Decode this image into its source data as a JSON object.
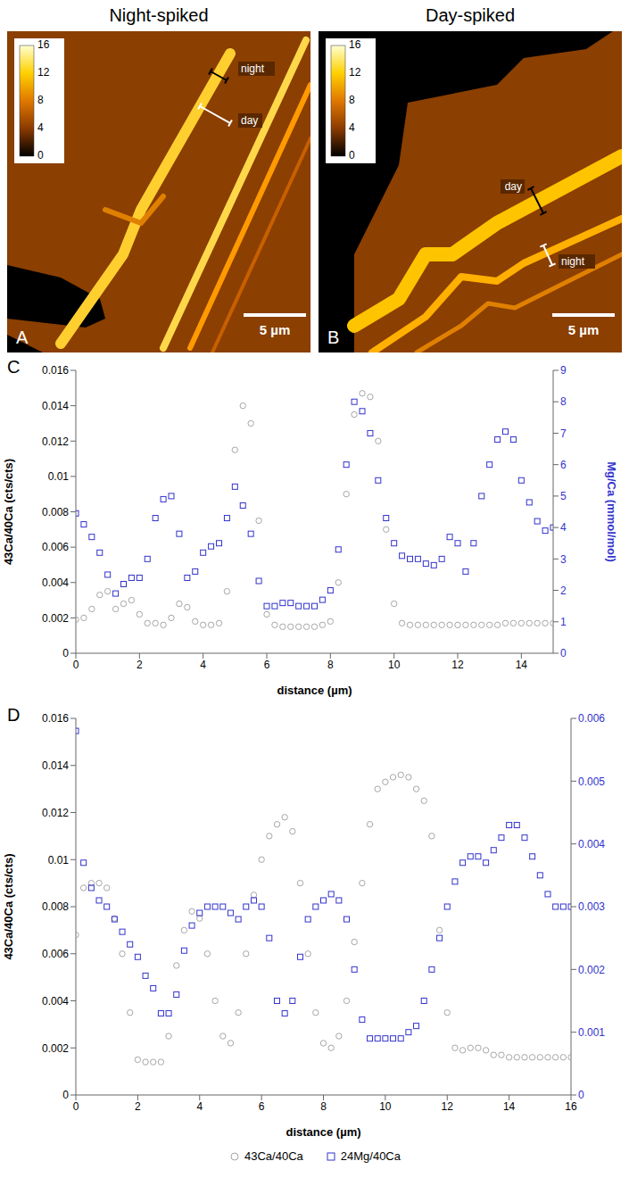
{
  "images": [
    {
      "panel": "A",
      "title": "Night-spiked",
      "colorbar": {
        "range": [
          0,
          16
        ],
        "ticks": [
          0,
          4,
          8,
          12,
          16
        ]
      },
      "annotations": [
        "night",
        "day"
      ],
      "scale_bar": "5 µm"
    },
    {
      "panel": "B",
      "title": "Day-spiked",
      "colorbar": {
        "range": [
          0,
          16
        ],
        "ticks": [
          0,
          4,
          8,
          12,
          16
        ]
      },
      "annotations": [
        "day",
        "night"
      ],
      "scale_bar": "5 µm"
    }
  ],
  "chart_data": [
    {
      "type": "scatter",
      "panel": "C",
      "x_label": "distance (µm)",
      "y_label": "43Ca/40Ca (cts/cts)",
      "y2_label": "Mg/Ca (mmol/mol)",
      "xlim": [
        0,
        15
      ],
      "xticks": [
        0,
        2,
        4,
        6,
        8,
        10,
        12,
        14
      ],
      "ylim": [
        0,
        0.016
      ],
      "yticks": [
        0,
        0.002,
        0.004,
        0.006,
        0.008,
        0.01,
        0.012,
        0.014,
        0.016
      ],
      "y2lim": [
        0,
        9
      ],
      "y2ticks": [
        0,
        1,
        2,
        3,
        4,
        5,
        6,
        7,
        8,
        9
      ],
      "grid": false,
      "x": [
        0,
        0.25,
        0.5,
        0.75,
        1,
        1.25,
        1.5,
        1.75,
        2,
        2.25,
        2.5,
        2.75,
        3,
        3.25,
        3.5,
        3.75,
        4,
        4.25,
        4.5,
        4.75,
        5,
        5.25,
        5.5,
        5.75,
        6,
        6.25,
        6.5,
        6.75,
        7,
        7.25,
        7.5,
        7.75,
        8,
        8.25,
        8.5,
        8.75,
        9,
        9.25,
        9.5,
        9.75,
        10,
        10.25,
        10.5,
        10.75,
        11,
        11.25,
        11.5,
        11.75,
        12,
        12.25,
        12.5,
        12.75,
        13,
        13.25,
        13.5,
        13.75,
        14,
        14.25,
        14.5,
        14.75,
        15
      ],
      "series": [
        {
          "name": "43Ca/40Ca",
          "color": "#a6a6a6",
          "marker": "circle",
          "values": [
            0.0019,
            0.002,
            0.0025,
            0.0033,
            0.0035,
            0.0025,
            0.0028,
            0.003,
            0.0022,
            0.0017,
            0.0017,
            0.0016,
            0.002,
            0.0028,
            0.0026,
            0.0018,
            0.0016,
            0.0016,
            0.0017,
            0.0035,
            0.0115,
            0.014,
            0.013,
            0.0075,
            0.0022,
            0.0016,
            0.0015,
            0.0015,
            0.0015,
            0.0015,
            0.0015,
            0.0016,
            0.0018,
            0.004,
            0.009,
            0.0135,
            0.0147,
            0.0145,
            0.012,
            0.007,
            0.0028,
            0.0017,
            0.0016,
            0.0016,
            0.0016,
            0.0016,
            0.0016,
            0.0016,
            0.0016,
            0.0016,
            0.0016,
            0.0016,
            0.0016,
            0.0016,
            0.0017,
            0.0017,
            0.0017,
            0.0017,
            0.0017,
            0.0017,
            0.0017
          ]
        },
        {
          "name": "24Mg/40Ca",
          "color": "#3333cc",
          "marker": "square",
          "axis": "y2",
          "values": [
            4.45,
            4.1,
            3.7,
            3.2,
            2.5,
            1.9,
            2.2,
            2.4,
            2.4,
            3.0,
            4.3,
            4.9,
            5.0,
            3.8,
            2.4,
            2.6,
            3.2,
            3.4,
            3.5,
            4.3,
            5.3,
            4.7,
            3.8,
            2.3,
            1.5,
            1.5,
            1.6,
            1.6,
            1.5,
            1.5,
            1.5,
            1.7,
            2.0,
            3.3,
            6.0,
            8.0,
            7.7,
            7.0,
            5.5,
            4.3,
            3.5,
            3.1,
            3.0,
            3.0,
            2.85,
            2.8,
            3.0,
            3.7,
            3.5,
            2.6,
            3.5,
            5.0,
            6.0,
            6.8,
            7.05,
            6.8,
            5.5,
            4.8,
            4.2,
            3.9,
            4.0
          ]
        }
      ]
    },
    {
      "type": "scatter",
      "panel": "D",
      "x_label": "distance (µm)",
      "y_label": "43Ca/40Ca (cts/cts)",
      "xlim": [
        0,
        16
      ],
      "xticks": [
        0,
        2,
        4,
        6,
        8,
        10,
        12,
        14,
        16
      ],
      "ylim": [
        0,
        0.016
      ],
      "yticks": [
        0,
        0.002,
        0.004,
        0.006,
        0.008,
        0.01,
        0.012,
        0.014,
        0.016
      ],
      "y2lim": [
        0,
        0.006
      ],
      "y2ticks": [
        0,
        0.001,
        0.002,
        0.003,
        0.004,
        0.005,
        0.006
      ],
      "grid": false,
      "legend": "bottom",
      "x": [
        0,
        0.25,
        0.5,
        0.75,
        1,
        1.25,
        1.5,
        1.75,
        2,
        2.25,
        2.5,
        2.75,
        3,
        3.25,
        3.5,
        3.75,
        4,
        4.25,
        4.5,
        4.75,
        5,
        5.25,
        5.5,
        5.75,
        6,
        6.25,
        6.5,
        6.75,
        7,
        7.25,
        7.5,
        7.75,
        8,
        8.25,
        8.5,
        8.75,
        9,
        9.25,
        9.5,
        9.75,
        10,
        10.25,
        10.5,
        10.75,
        11,
        11.25,
        11.5,
        11.75,
        12,
        12.25,
        12.5,
        12.75,
        13,
        13.25,
        13.5,
        13.75,
        14,
        14.25,
        14.5,
        14.75,
        15,
        15.25,
        15.5,
        15.75,
        16
      ],
      "series": [
        {
          "name": "43Ca/40Ca",
          "color": "#a6a6a6",
          "marker": "circle",
          "values": [
            0.0068,
            0.0088,
            0.009,
            0.009,
            0.0088,
            0.0075,
            0.006,
            0.0035,
            0.0015,
            0.0014,
            0.0014,
            0.0014,
            0.0025,
            0.0055,
            0.007,
            0.0078,
            0.0075,
            0.006,
            0.004,
            0.0025,
            0.0022,
            0.0035,
            0.006,
            0.0085,
            0.01,
            0.011,
            0.0115,
            0.0118,
            0.0112,
            0.009,
            0.006,
            0.0035,
            0.0022,
            0.002,
            0.0025,
            0.004,
            0.0065,
            0.009,
            0.0115,
            0.013,
            0.0133,
            0.0135,
            0.0136,
            0.0135,
            0.013,
            0.0125,
            0.011,
            0.007,
            0.0035,
            0.002,
            0.0019,
            0.002,
            0.002,
            0.0019,
            0.0017,
            0.0017,
            0.0016,
            0.0016,
            0.0016,
            0.0016,
            0.0016,
            0.0016,
            0.0016,
            0.0016,
            0.0016
          ]
        },
        {
          "name": "24Mg/40Ca",
          "color": "#3333cc",
          "marker": "square",
          "axis": "y2",
          "values": [
            0.0058,
            0.0037,
            0.0033,
            0.0031,
            0.003,
            0.0028,
            0.0026,
            0.0024,
            0.0022,
            0.0019,
            0.0017,
            0.0013,
            0.0013,
            0.0016,
            0.0023,
            0.0027,
            0.0029,
            0.003,
            0.003,
            0.003,
            0.0029,
            0.0028,
            0.003,
            0.0031,
            0.003,
            0.0025,
            0.0015,
            0.0013,
            0.0015,
            0.0022,
            0.0028,
            0.003,
            0.0031,
            0.0032,
            0.0031,
            0.0028,
            0.002,
            0.0012,
            0.0009,
            0.0009,
            0.0009,
            0.0009,
            0.0009,
            0.001,
            0.0011,
            0.0015,
            0.002,
            0.0025,
            0.003,
            0.0034,
            0.0037,
            0.0038,
            0.0038,
            0.0037,
            0.0039,
            0.0041,
            0.0043,
            0.0043,
            0.0041,
            0.0038,
            0.0035,
            0.0032,
            0.003,
            0.003,
            0.003
          ]
        }
      ]
    }
  ]
}
